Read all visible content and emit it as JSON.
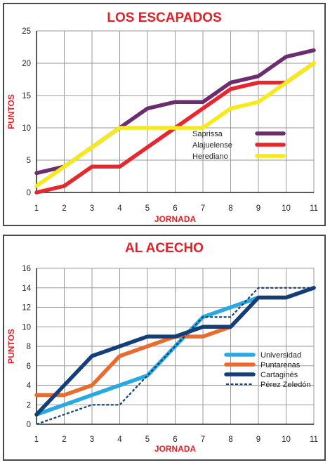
{
  "colors": {
    "title": "#e2202a",
    "grid": "#9a9a9a",
    "axis": "#222222"
  },
  "chart_data": [
    {
      "type": "line",
      "title": "LOS ESCAPADOS",
      "xlabel": "JORNADA",
      "ylabel": "PUNTOS",
      "x": [
        1,
        2,
        3,
        4,
        5,
        6,
        7,
        8,
        9,
        10,
        11
      ],
      "ylim": [
        0,
        25
      ],
      "yticks": [
        0,
        5,
        10,
        15,
        20,
        25
      ],
      "grid": true,
      "legend_position": "right",
      "series": [
        {
          "name": "Saprissa",
          "color": "#6b2d6e",
          "dash": "solid",
          "values": [
            3,
            4,
            7,
            10,
            13,
            14,
            14,
            17,
            18,
            21,
            22
          ]
        },
        {
          "name": "Alajuelense",
          "color": "#e8262d",
          "dash": "solid",
          "values": [
            0,
            1,
            4,
            4,
            7,
            10,
            13,
            16,
            17,
            17,
            20
          ]
        },
        {
          "name": "Herediano",
          "color": "#f6ea1b",
          "dash": "solid",
          "values": [
            1,
            4,
            7,
            10,
            10,
            10,
            10,
            13,
            14,
            17,
            20
          ]
        }
      ]
    },
    {
      "type": "line",
      "title": "AL ACECHO",
      "xlabel": "JORNADA",
      "ylabel": "PUNTOS",
      "x": [
        1,
        2,
        3,
        4,
        5,
        6,
        7,
        8,
        9,
        10,
        11
      ],
      "ylim": [
        0,
        16
      ],
      "yticks": [
        0,
        2,
        4,
        6,
        8,
        10,
        12,
        14,
        16
      ],
      "grid": true,
      "legend_position": "right",
      "series": [
        {
          "name": "Universidad",
          "color": "#29a9e1",
          "dash": "solid",
          "values": [
            1,
            2,
            3,
            4,
            5,
            8,
            11,
            12,
            13,
            13,
            14
          ]
        },
        {
          "name": "Puntarenas",
          "color": "#ea6b2f",
          "dash": "solid",
          "values": [
            3,
            3,
            4,
            7,
            8,
            9,
            9,
            10,
            13,
            13,
            14
          ]
        },
        {
          "name": "Cartaginés",
          "color": "#123f7a",
          "dash": "solid",
          "values": [
            1,
            4,
            7,
            8,
            9,
            9,
            10,
            10,
            13,
            13,
            14
          ]
        },
        {
          "name": "Pérez Zeledón",
          "color": "#123f7a",
          "dash": "dashed",
          "values": [
            0,
            1,
            2,
            2,
            5,
            8,
            11,
            11,
            14,
            14,
            14
          ]
        }
      ]
    }
  ]
}
